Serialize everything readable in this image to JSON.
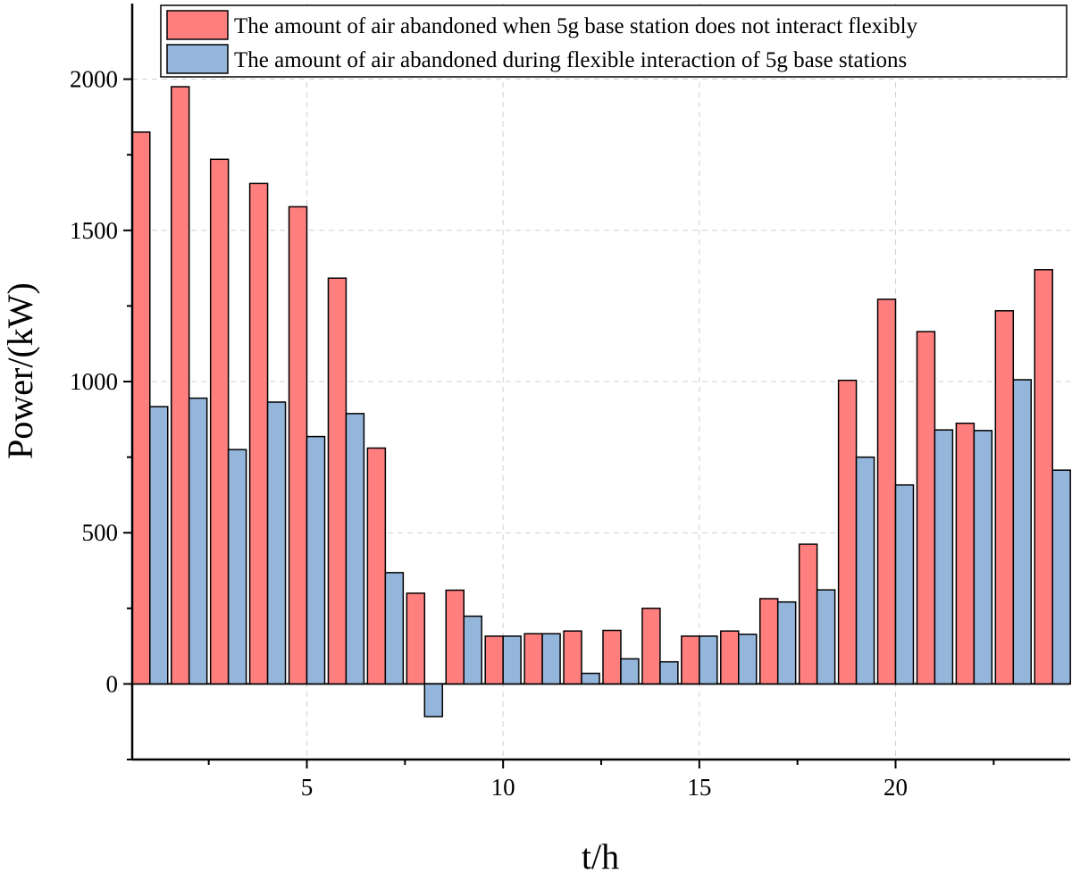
{
  "chart_data": {
    "type": "bar",
    "xlabel": "t/h",
    "ylabel": "Power/(kW)",
    "x": [
      1,
      2,
      3,
      4,
      5,
      6,
      7,
      8,
      9,
      10,
      11,
      12,
      13,
      14,
      15,
      16,
      17,
      18,
      19,
      20,
      21,
      22,
      23,
      24
    ],
    "xlim": [
      0.55,
      24.45
    ],
    "ylim": [
      -250,
      2250
    ],
    "xticks": [
      5,
      10,
      15,
      20
    ],
    "xticks_minor": [
      2.5,
      7.5,
      12.5,
      17.5,
      22.5
    ],
    "yticks": [
      0,
      500,
      1000,
      1500,
      2000
    ],
    "yticks_minor": [
      -250,
      250,
      750,
      1250,
      1750
    ],
    "grid": true,
    "legend_position": "top-right",
    "series": [
      {
        "name": "The amount of air abandoned when 5g base station does not interact flexibly",
        "color": "#FF7F7F",
        "values": [
          1825,
          1975,
          1735,
          1655,
          1578,
          1342,
          780,
          300,
          310,
          158,
          166,
          175,
          177,
          250,
          158,
          175,
          282,
          462,
          1004,
          1272,
          1165,
          862,
          1234,
          1370
        ]
      },
      {
        "name": "The amount of air abandoned during flexible interaction of 5g base stations",
        "color": "#95B6DB",
        "values": [
          917,
          945,
          775,
          932,
          818,
          894,
          368,
          -108,
          224,
          158,
          166,
          35,
          83,
          73,
          158,
          164,
          271,
          311,
          750,
          658,
          840,
          838,
          1006,
          707
        ]
      }
    ]
  }
}
